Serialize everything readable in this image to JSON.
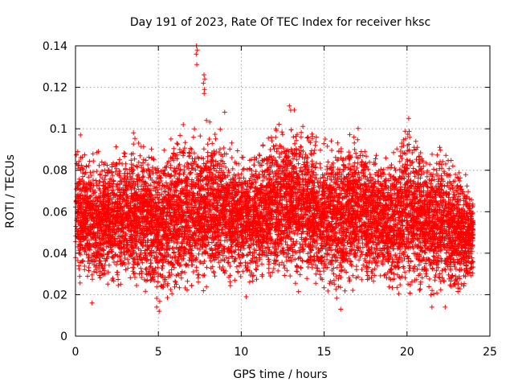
{
  "chart_data": {
    "type": "scatter",
    "title": "Day 191 of 2023, Rate Of TEC Index for receiver hksc",
    "xlabel": "GPS time / hours",
    "ylabel": "ROTI / TECUs",
    "xlim": [
      0,
      25
    ],
    "ylim": [
      0,
      0.14
    ],
    "xticks": [
      0,
      5,
      10,
      15,
      20,
      25
    ],
    "xtick_labels": [
      "0",
      "5",
      "10",
      "15",
      "20",
      "25"
    ],
    "yticks": [
      0,
      0.02,
      0.04,
      0.06,
      0.08,
      0.1,
      0.12,
      0.14
    ],
    "ytick_labels": [
      "0",
      "0.02",
      "0.04",
      "0.06",
      "0.08",
      "0.1",
      "0.12",
      "0.14"
    ],
    "grid": true,
    "marker": "plus",
    "color": "#ff0000",
    "series": [
      {
        "x_range": [
          0,
          24
        ],
        "typical_range": [
          0.02,
          0.08
        ],
        "envelope": {
          "x": [
            0,
            1,
            2,
            3,
            4,
            5,
            6,
            7,
            8,
            9,
            10,
            11,
            12,
            13,
            14,
            15,
            16,
            17,
            18,
            19,
            20,
            21,
            22,
            23,
            24
          ],
          "low": [
            0.022,
            0.019,
            0.02,
            0.02,
            0.018,
            0.012,
            0.016,
            0.018,
            0.018,
            0.02,
            0.022,
            0.02,
            0.02,
            0.02,
            0.018,
            0.016,
            0.014,
            0.018,
            0.02,
            0.018,
            0.016,
            0.016,
            0.014,
            0.016,
            0.024
          ],
          "high": [
            0.097,
            0.09,
            0.09,
            0.096,
            0.098,
            0.091,
            0.102,
            0.1,
            0.108,
            0.1,
            0.092,
            0.094,
            0.106,
            0.111,
            0.106,
            0.1,
            0.1,
            0.104,
            0.094,
            0.09,
            0.108,
            0.094,
            0.098,
            0.086,
            0.075
          ]
        },
        "points": [
          [
            7.3,
            0.14
          ],
          [
            7.35,
            0.138
          ],
          [
            7.28,
            0.136
          ],
          [
            7.32,
            0.131
          ],
          [
            7.75,
            0.126
          ],
          [
            7.8,
            0.124
          ],
          [
            7.72,
            0.122
          ],
          [
            7.78,
            0.119
          ],
          [
            7.76,
            0.117
          ],
          [
            7.9,
            0.104
          ],
          [
            6.5,
            0.102
          ],
          [
            9.0,
            0.108
          ],
          [
            12.9,
            0.111
          ],
          [
            13.2,
            0.109
          ],
          [
            20.1,
            0.105
          ],
          [
            0.3,
            0.097
          ],
          [
            3.5,
            0.098
          ],
          [
            5.05,
            0.012
          ],
          [
            4.9,
            0.014
          ],
          [
            16.0,
            0.013
          ],
          [
            21.5,
            0.014
          ],
          [
            22.3,
            0.014
          ],
          [
            1.0,
            0.016
          ],
          [
            10.3,
            0.019
          ]
        ]
      }
    ]
  }
}
